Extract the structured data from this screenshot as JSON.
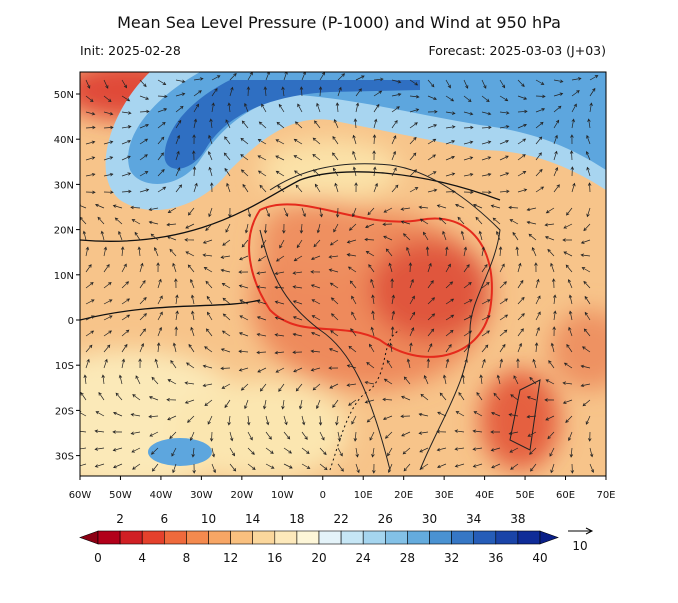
{
  "title": "Mean Sea Level Pressure (P-1000) and Wind at 950 hPa",
  "init": "Init: 2025-02-28",
  "forecast": "Forecast: 2025-03-03 (J+03)",
  "lat_labels": [
    "50N",
    "40N",
    "30N",
    "20N",
    "10N",
    "0",
    "10S",
    "20S",
    "30S"
  ],
  "lon_labels": [
    "60W",
    "50W",
    "40W",
    "30W",
    "20W",
    "10W",
    "0",
    "10E",
    "20E",
    "30E",
    "40E",
    "50E",
    "60E",
    "70E"
  ],
  "colorbar": {
    "upper_labels": [
      "2",
      "6",
      "10",
      "14",
      "18",
      "22",
      "26",
      "30",
      "34",
      "38"
    ],
    "lower_labels": [
      "0",
      "4",
      "8",
      "12",
      "16",
      "20",
      "24",
      "28",
      "32",
      "36",
      "40"
    ]
  },
  "wind_reference": "10"
}
